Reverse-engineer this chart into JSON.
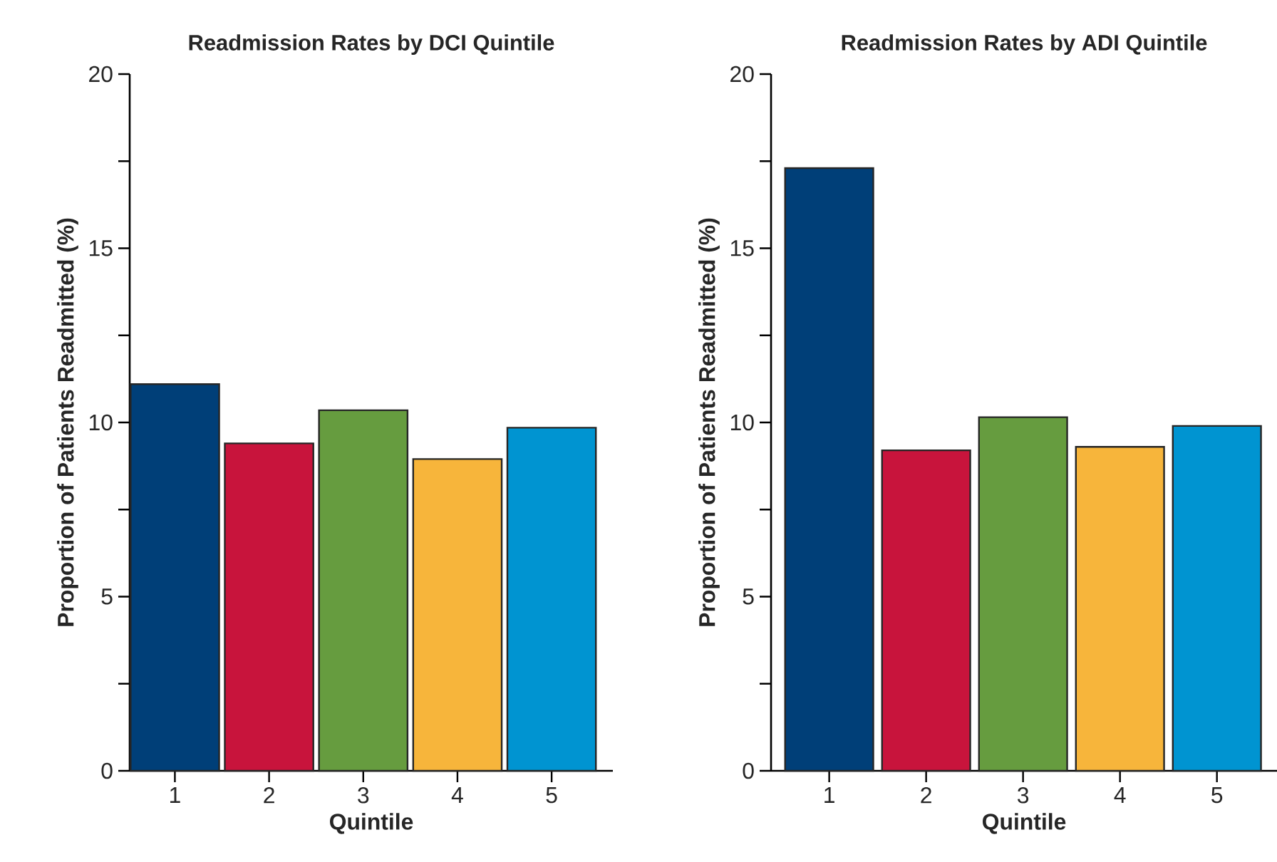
{
  "chart_data": [
    {
      "type": "bar",
      "title": "Readmission Rates by DCI Quintile",
      "xlabel": "Quintile",
      "ylabel": "Proportion of Patients Readmitted (%)",
      "categories": [
        "1",
        "2",
        "3",
        "4",
        "5"
      ],
      "values": [
        11.1,
        9.4,
        10.35,
        8.95,
        9.85
      ],
      "colors": [
        "#003f78",
        "#c8143c",
        "#669c3f",
        "#f7b53b",
        "#0094d1"
      ],
      "ylim": [
        0,
        20
      ],
      "yticks": [
        0,
        {
          "value": 2.5,
          "label": null
        },
        5,
        {
          "value": 7.5,
          "label": null
        },
        10,
        {
          "value": 12.5,
          "label": null
        },
        15,
        {
          "value": 17.5,
          "label": null
        },
        20
      ]
    },
    {
      "type": "bar",
      "title": "Readmission Rates by ADI Quintile",
      "xlabel": "Quintile",
      "ylabel": "Proportion of Patients Readmitted (%)",
      "categories": [
        "1",
        "2",
        "3",
        "4",
        "5"
      ],
      "values": [
        17.3,
        9.2,
        10.15,
        9.3,
        9.9
      ],
      "colors": [
        "#003f78",
        "#c8143c",
        "#669c3f",
        "#f7b53b",
        "#0094d1"
      ],
      "ylim": [
        0,
        20
      ],
      "yticks": [
        0,
        {
          "value": 2.5,
          "label": null
        },
        5,
        {
          "value": 7.5,
          "label": null
        },
        10,
        {
          "value": 12.5,
          "label": null
        },
        15,
        {
          "value": 17.5,
          "label": null
        },
        20
      ]
    }
  ]
}
